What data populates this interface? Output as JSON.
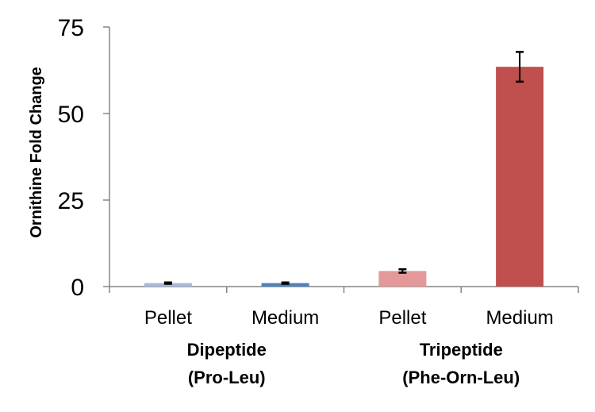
{
  "chart_data": {
    "type": "bar",
    "title": "",
    "xlabel": "",
    "ylabel": "Ornithine Fold Change",
    "ylim": [
      0,
      75
    ],
    "yticks": [
      "0",
      "25",
      "50",
      "75"
    ],
    "grid": false,
    "categories": [
      "Pellet",
      "Medium",
      "Pellet",
      "Medium"
    ],
    "groups": [
      {
        "line1": "Dipeptide",
        "line2": "(Pro-Leu)"
      },
      {
        "line1": "Tripeptide",
        "line2": "(Phe-Orn-Leu)"
      }
    ],
    "values": [
      1,
      1,
      4.5,
      63.5
    ],
    "errors": [
      0.2,
      0.2,
      0.5,
      4.3
    ],
    "colors": [
      "#a6b9d8",
      "#4f81bd",
      "#e39999",
      "#c0504d"
    ]
  }
}
